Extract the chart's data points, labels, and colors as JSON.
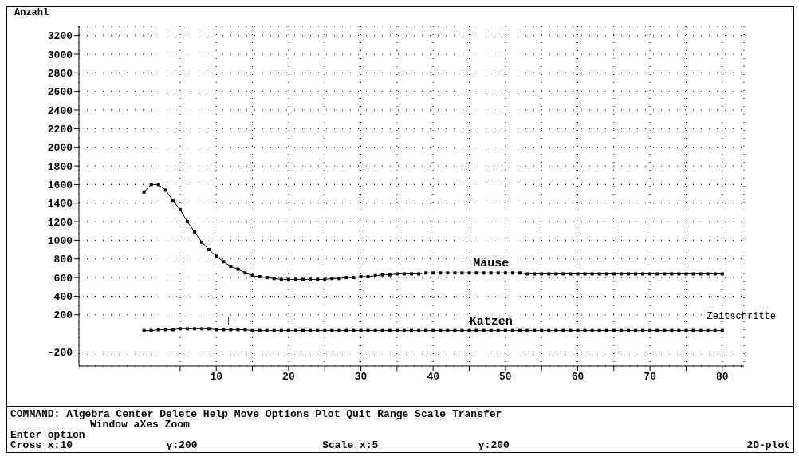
{
  "chart_data": {
    "type": "line",
    "xlabel": "Zeitschritte",
    "ylabel": "Anzahl",
    "x": [
      0,
      1,
      2,
      3,
      4,
      5,
      6,
      7,
      8,
      9,
      10,
      11,
      12,
      13,
      14,
      15,
      16,
      17,
      18,
      19,
      20,
      21,
      22,
      23,
      24,
      25,
      26,
      27,
      28,
      29,
      30,
      31,
      32,
      33,
      34,
      35,
      36,
      37,
      38,
      39,
      40,
      41,
      42,
      43,
      44,
      45,
      46,
      47,
      48,
      49,
      50,
      51,
      52,
      53,
      54,
      55,
      56,
      57,
      58,
      59,
      60,
      61,
      62,
      63,
      64,
      65,
      66,
      67,
      68,
      69,
      70,
      71,
      72,
      73,
      74,
      75,
      76,
      77,
      78,
      79,
      80
    ],
    "series": [
      {
        "name": "Mäuse",
        "color": "#000000",
        "values": [
          1520,
          1600,
          1600,
          1540,
          1430,
          1330,
          1200,
          1090,
          980,
          900,
          830,
          770,
          720,
          690,
          650,
          620,
          610,
          600,
          590,
          580,
          580,
          580,
          580,
          580,
          580,
          580,
          590,
          590,
          600,
          600,
          610,
          610,
          620,
          630,
          630,
          640,
          640,
          640,
          640,
          650,
          650,
          650,
          650,
          650,
          650,
          650,
          650,
          650,
          650,
          650,
          650,
          650,
          650,
          640,
          640,
          640,
          640,
          640,
          640,
          640,
          640,
          640,
          640,
          640,
          640,
          640,
          640,
          640,
          640,
          640,
          640,
          640,
          640,
          640,
          640,
          640,
          640,
          640,
          640,
          640,
          640
        ]
      },
      {
        "name": "Katzen",
        "color": "#000000",
        "values": [
          30,
          30,
          40,
          40,
          40,
          50,
          50,
          50,
          50,
          50,
          40,
          40,
          40,
          40,
          40,
          30,
          30,
          30,
          30,
          30,
          30,
          30,
          30,
          30,
          30,
          30,
          30,
          30,
          30,
          30,
          30,
          30,
          30,
          30,
          30,
          30,
          30,
          30,
          30,
          30,
          30,
          30,
          30,
          30,
          30,
          30,
          30,
          30,
          30,
          30,
          30,
          30,
          30,
          30,
          30,
          30,
          30,
          30,
          30,
          30,
          30,
          30,
          30,
          30,
          30,
          30,
          30,
          30,
          30,
          30,
          30,
          30,
          30,
          30,
          30,
          30,
          30,
          30,
          30,
          30,
          30
        ]
      }
    ],
    "xlim": [
      -9,
      83
    ],
    "xticks": [
      {
        "value": 5,
        "label": null
      },
      10,
      {
        "value": 15,
        "label": null
      },
      20,
      {
        "value": 25,
        "label": null
      },
      30,
      {
        "value": 35,
        "label": null
      },
      40,
      {
        "value": 45,
        "label": null
      },
      50,
      {
        "value": 55,
        "label": null
      },
      60,
      {
        "value": 65,
        "label": null
      },
      70,
      {
        "value": 75,
        "label": null
      },
      80
    ],
    "ylim": [
      -350,
      3300
    ],
    "yticks": [
      -200,
      200,
      400,
      600,
      800,
      1000,
      1200,
      1400,
      1600,
      1800,
      2000,
      2200,
      2400,
      2600,
      2800,
      3000,
      3200
    ],
    "grid": true,
    "marker": "square",
    "line_style": "solid",
    "annotations": [
      "COMMAND: Algebra Center Delete Help Move Options Plot Quit Range Scale Transfer",
      "Window aXes Zoom",
      "Enter option",
      "Cross x:10",
      "y:200",
      "Scale x:5",
      "y:200",
      "2D-plot"
    ]
  }
}
